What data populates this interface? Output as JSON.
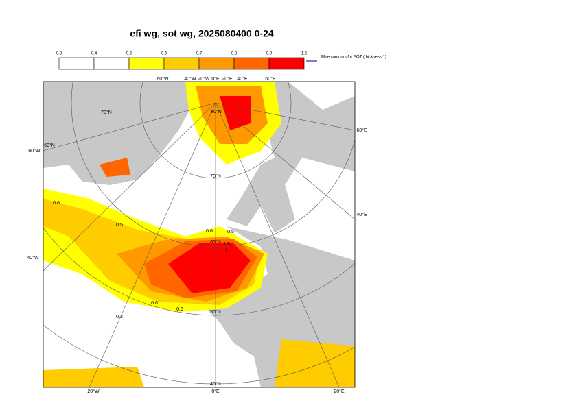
{
  "title": "efi wg, sot wg, 2025080400 0-24",
  "colorbar": {
    "ticks": [
      "0.3",
      "0.4",
      "0.5",
      "0.6",
      "0.7",
      "0.8",
      "0.9",
      "1.5"
    ],
    "colors": [
      "#ffffff",
      "#ffffff",
      "#ffff00",
      "#ffcc00",
      "#ff9900",
      "#ff6600",
      "#ff0000"
    ]
  },
  "legend_note": "Blue contours for SOT (thickness 1)",
  "map_labels": {
    "left": [
      "60°W",
      "40°W"
    ],
    "bottom": [
      "20°W",
      "0°E",
      "20°E"
    ],
    "right": [
      "40°E",
      "60°E"
    ],
    "top": [
      "60°W",
      "40°W",
      "20°W",
      "0°E",
      "20°E",
      "40°E",
      "60°E"
    ],
    "latitudes": [
      "70°N",
      "80°N",
      "70°N",
      "60°N",
      "50°N",
      "40°N",
      "60°N"
    ],
    "contours": [
      "0.6",
      "0.5",
      "0.3",
      "0.6",
      "0.5",
      "1.5",
      "2",
      "0.6",
      "0.5"
    ]
  }
}
